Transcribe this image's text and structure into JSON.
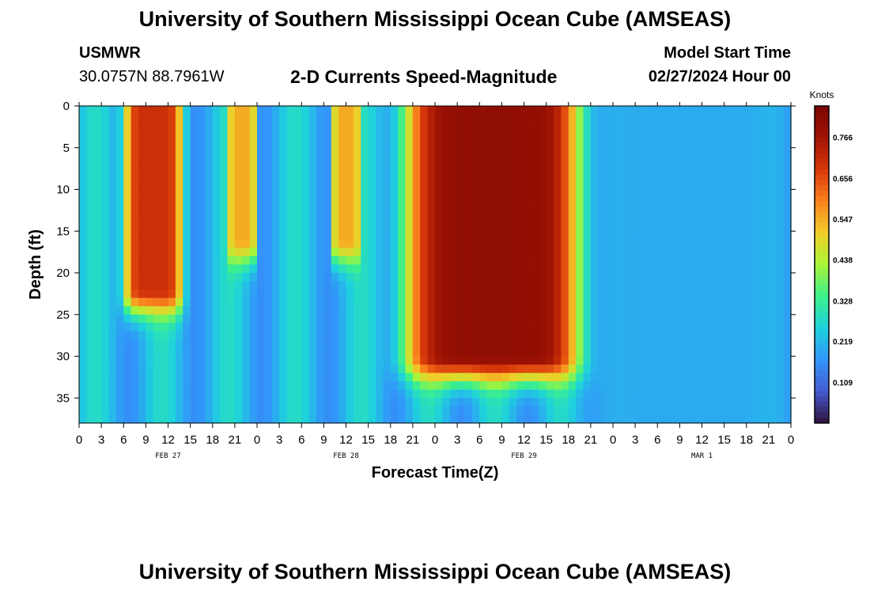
{
  "header": {
    "title": "University of Southern Mississippi Ocean Cube (AMSEAS)",
    "station": "USMWR",
    "coords": "30.0757N  88.7961W",
    "subtitle": "2-D Currents Speed-Magnitude",
    "model_start_label": "Model Start Time",
    "model_start_value": "02/27/2024 Hour 00"
  },
  "footer": {
    "title": "University of Southern Mississippi Ocean Cube (AMSEAS)"
  },
  "chart_data": {
    "type": "heatmap",
    "xlabel": "Forecast Time(Z)",
    "ylabel": "Depth (ft)",
    "x_tick_labels": [
      "0",
      "3",
      "6",
      "9",
      "12",
      "15",
      "18",
      "21",
      "0",
      "3",
      "6",
      "9",
      "12",
      "15",
      "18",
      "21",
      "0",
      "3",
      "6",
      "9",
      "12",
      "15",
      "18",
      "21",
      "0",
      "3",
      "6",
      "9",
      "12",
      "15",
      "18",
      "21",
      "0"
    ],
    "x_range_hours": [
      0,
      96
    ],
    "date_labels": [
      {
        "hour": 12,
        "text": "FEB 27"
      },
      {
        "hour": 36,
        "text": "FEB 28"
      },
      {
        "hour": 60,
        "text": "FEB 29"
      },
      {
        "hour": 84,
        "text": "MAR 1"
      }
    ],
    "y_ticks": [
      0,
      5,
      10,
      15,
      20,
      25,
      30,
      35
    ],
    "y_range_ft": [
      0,
      38
    ],
    "y_inverted": true,
    "colorbar": {
      "unit": "Knots",
      "ticks": [
        "0.766",
        "0.656",
        "0.547",
        "0.438",
        "0.328",
        "0.219",
        "0.109"
      ],
      "range": [
        0,
        0.85
      ]
    },
    "colors": {
      "min": "#2e1b6e",
      "low": "#3c7ee8",
      "mid": "#a6f03c",
      "high": "#f07d1e",
      "max": "#7a0a03"
    },
    "features": [
      {
        "name": "strong current",
        "hours": [
          6,
          14
        ],
        "depth_ft": [
          0,
          22
        ],
        "speed_knots": 0.7
      },
      {
        "name": "moderate current",
        "hours": [
          20,
          24
        ],
        "depth_ft": [
          0,
          16
        ],
        "speed_knots": 0.55
      },
      {
        "name": "moderate current",
        "hours": [
          34,
          38
        ],
        "depth_ft": [
          0,
          16
        ],
        "speed_knots": 0.55
      },
      {
        "name": "strongest current",
        "hours": [
          44,
          68
        ],
        "depth_ft": [
          0,
          30
        ],
        "speed_knots": 0.8
      },
      {
        "name": "weak current",
        "hours": [
          68,
          96
        ],
        "depth_ft": [
          0,
          38
        ],
        "speed_knots": 0.2
      }
    ]
  }
}
